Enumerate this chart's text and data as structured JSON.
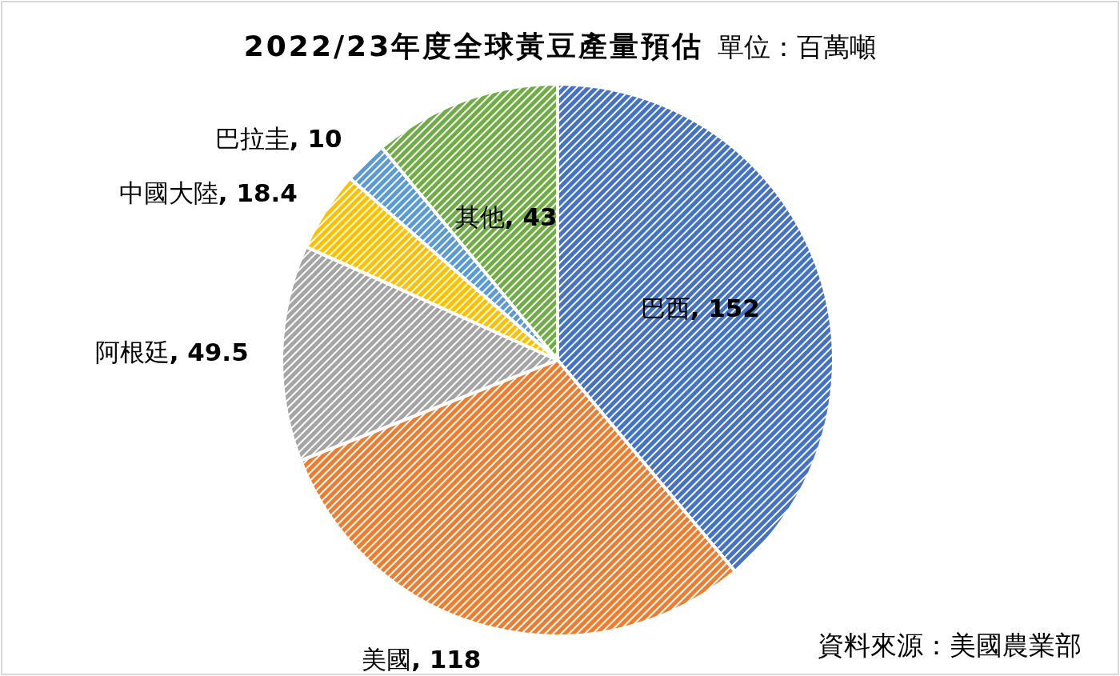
{
  "chart_data": {
    "type": "pie",
    "title": "2022/23年度全球黃豆產量預估",
    "subtitle": "單位：百萬噸",
    "categories": [
      "巴西",
      "美國",
      "阿根廷",
      "中國大陸",
      "巴拉圭",
      "其他"
    ],
    "values": [
      152,
      118,
      49.5,
      18.4,
      10,
      43
    ],
    "value_labels": [
      ", 152",
      ", 118",
      ", 49.5",
      ", 18.4",
      ", 10",
      ", 43"
    ],
    "legend": false,
    "colors": [
      "#4472c4",
      "#ed7d31",
      "#a5a5a5",
      "#ffc000",
      "#5b9bd5",
      "#70ad47"
    ],
    "annotations": [
      "資料來源：美國農業部"
    ]
  }
}
